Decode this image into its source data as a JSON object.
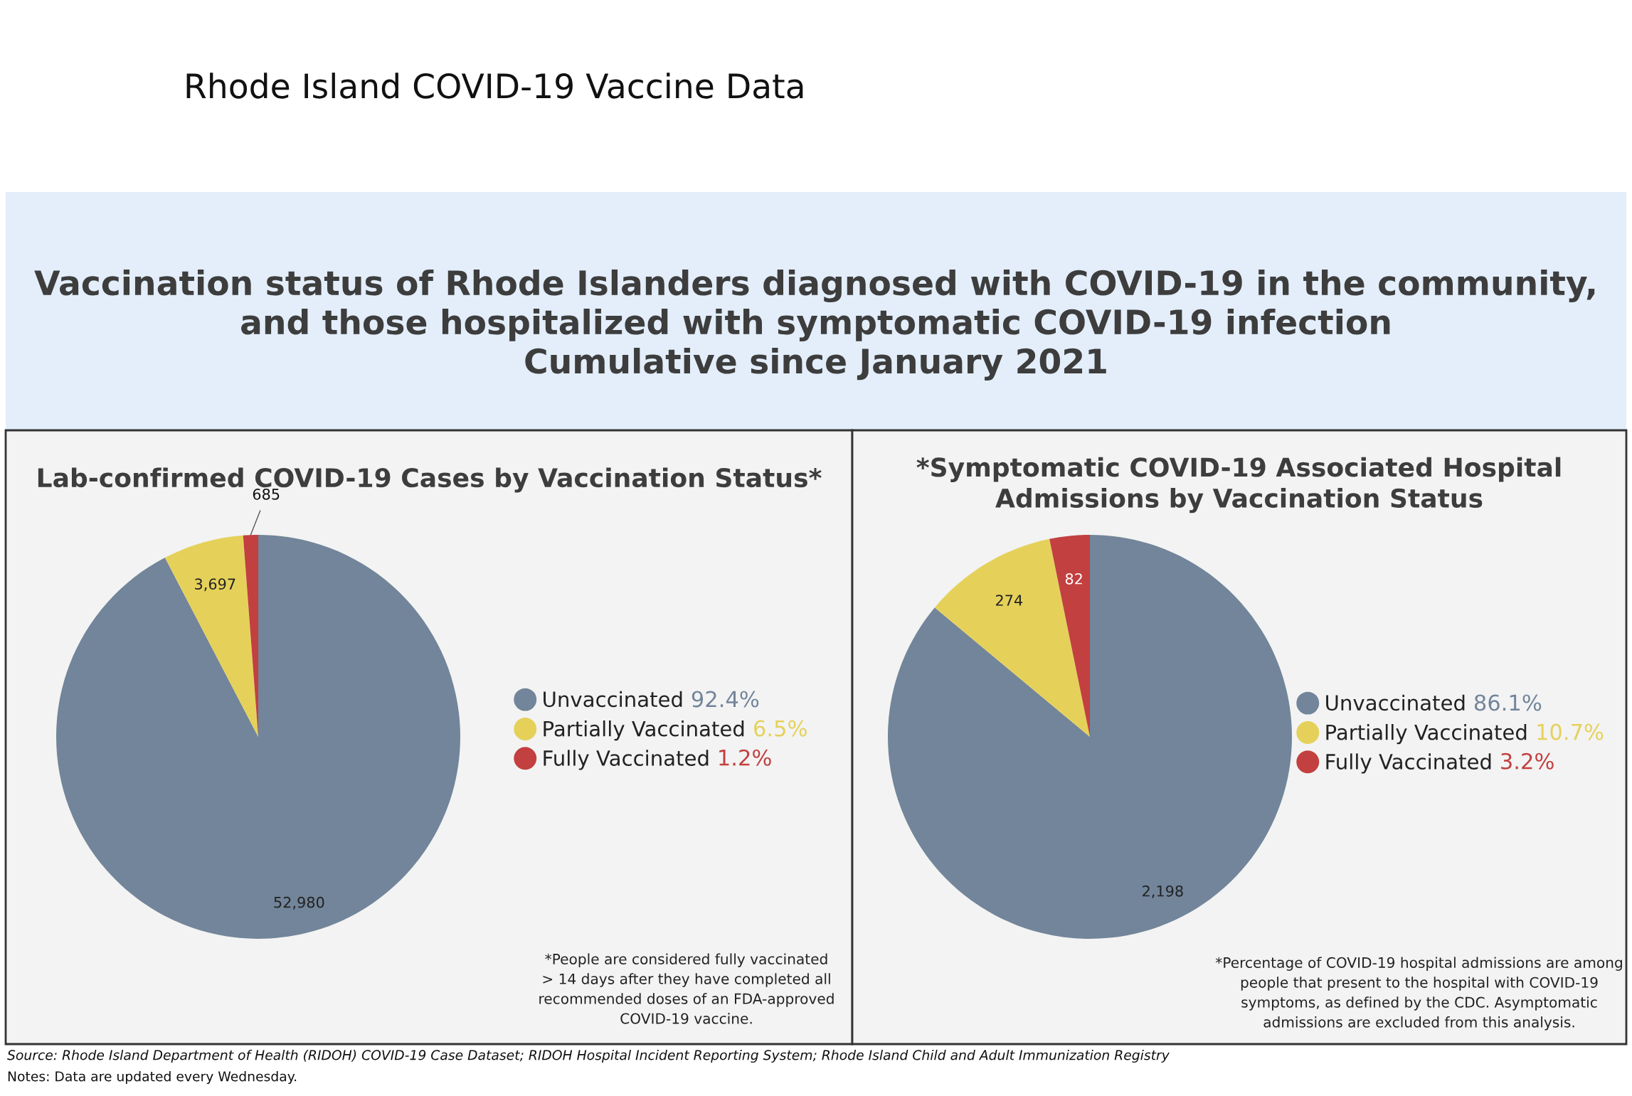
{
  "chart_data": [
    {
      "type": "other",
      "title": "Rhode Island COVID-19 Vaccine Data",
      "subtitle": "Vaccination status of Rhode Islanders diagnosed with COVID-19 in the community,\nand those hospitalized with symptomatic COVID-19 infection\nCumulative since January 2021",
      "annotations": [
        "Source: Rhode Island Department of Health (RIDOH) COVID-19 Case Dataset; RIDOH Hospital Incident Reporting System; Rhode Island Child and Adult Immunization Registry",
        "Notes: Data are updated every Wednesday."
      ]
    },
    {
      "type": "pie",
      "title": "Lab-confirmed COVID-19 Cases by Vaccination Status*",
      "categories": [
        "Unvaccinated",
        "Partially Vaccinated",
        "Fully Vaccinated"
      ],
      "values": [
        52980,
        3697,
        685
      ],
      "value_labels": [
        "52,980",
        "3,697",
        "685"
      ],
      "colors": [
        "#72859a",
        "#e5d15a",
        "#c2403f"
      ],
      "legend": "right",
      "annotations": [
        "92.4%",
        "6.5%",
        "1.2%",
        "*People are considered fully vaccinated\n> 14 days after they have completed all\nrecommended doses of an FDA-approved\nCOVID-19 vaccine."
      ]
    },
    {
      "type": "pie",
      "title": "*Symptomatic COVID-19 Associated Hospital\nAdmissions by Vaccination Status",
      "categories": [
        "Unvaccinated",
        "Partially Vaccinated",
        "Fully Vaccinated"
      ],
      "values": [
        2198,
        274,
        82
      ],
      "value_labels": [
        "2,198",
        "274",
        "82"
      ],
      "colors": [
        "#72859a",
        "#e5d15a",
        "#c2403f"
      ],
      "legend": "right",
      "annotations": [
        "86.1%",
        "10.7%",
        "3.2%",
        "*Percentage of COVID-19 hospital admissions are among\npeople that present to the hospital with COVID-19\nsymptoms, as defined by the CDC. Asymptomatic\nadmissions are excluded from this analysis."
      ]
    }
  ]
}
